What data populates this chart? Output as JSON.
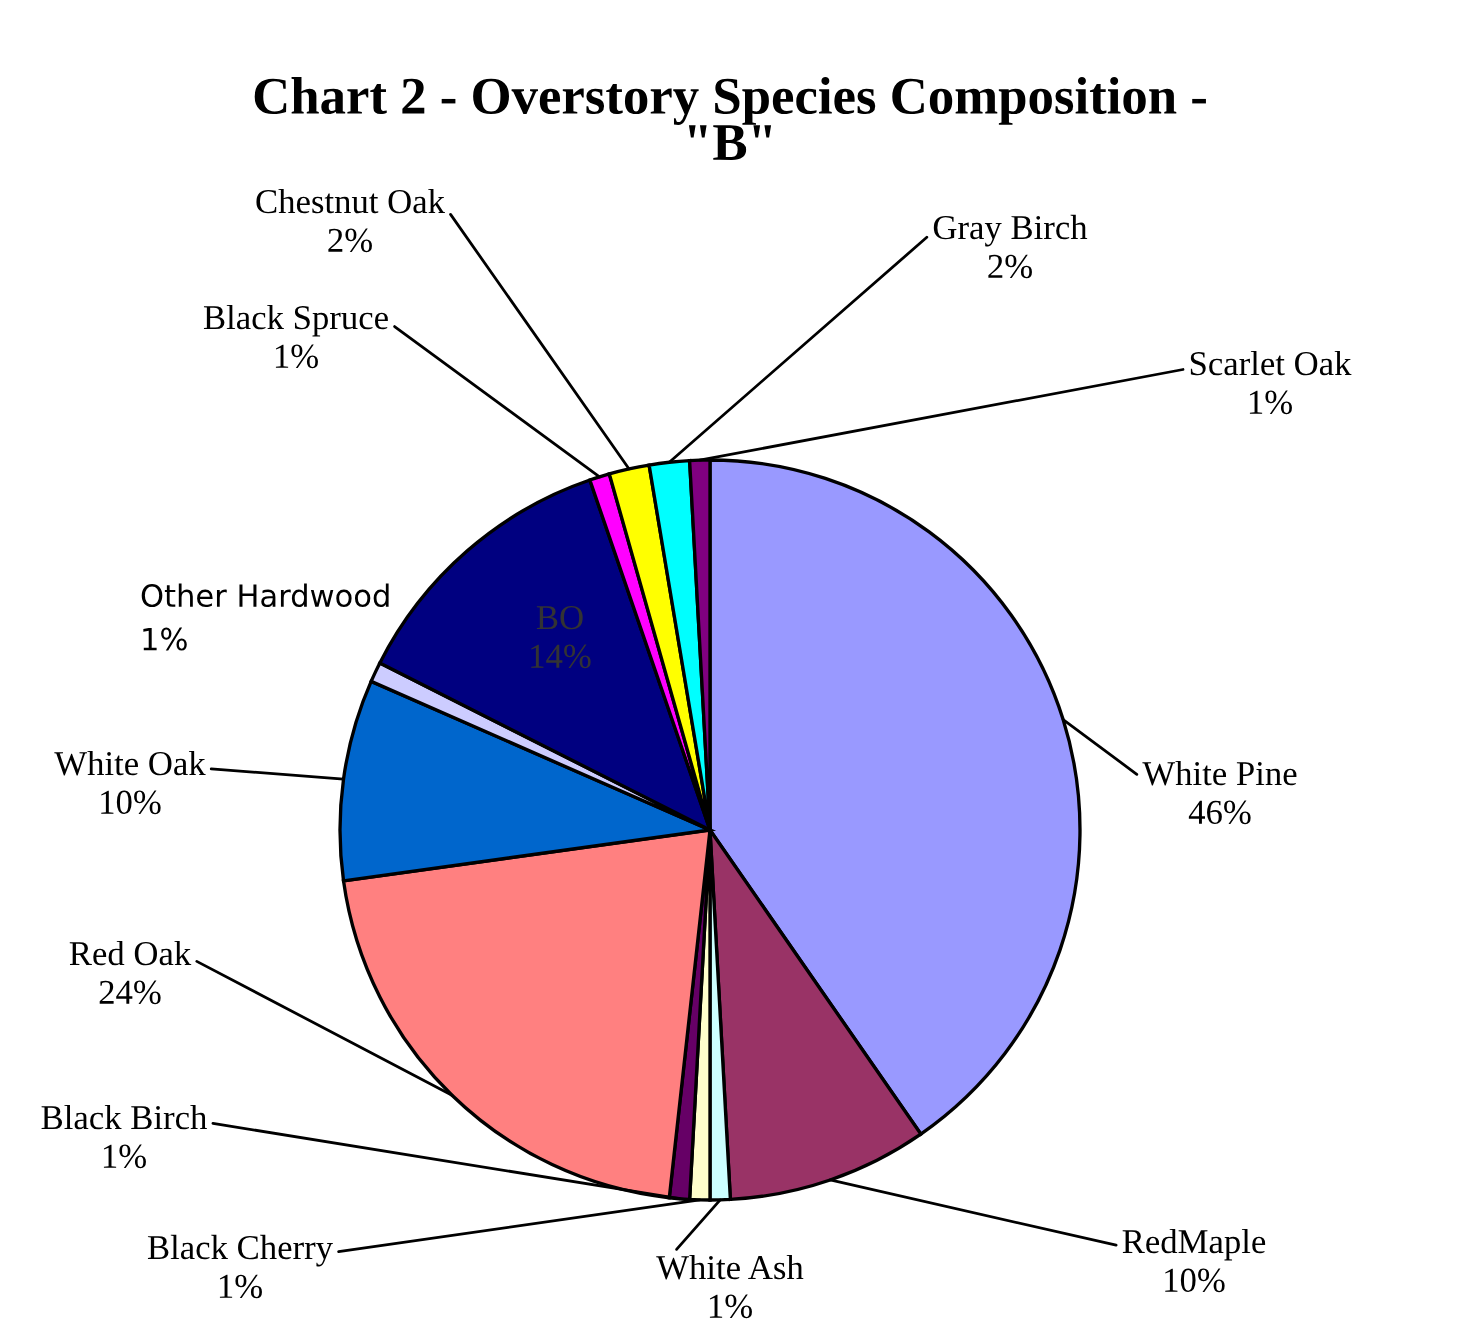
{
  "chart_data": {
    "type": "pie",
    "title": "Chart 2 - Overstory Species Composition -\n\"B\"",
    "categories": [
      "White Pine",
      "RedMaple",
      "White Ash",
      "Black Cherry",
      "Black Birch",
      "Red Oak",
      "White Oak",
      "Other Hardwood",
      "BO",
      "Black Spruce",
      "Chestnut Oak",
      "Gray Birch",
      "Scarlet Oak"
    ],
    "values": [
      46,
      10,
      1,
      1,
      1,
      24,
      10,
      1,
      14,
      1,
      2,
      2,
      1
    ],
    "value_labels": [
      "46%",
      "10%",
      "1%",
      "1%",
      "1%",
      "24%",
      "10%",
      "1%",
      "14%",
      "1%",
      "2%",
      "2%",
      "1%"
    ],
    "colors": [
      "#9999ff",
      "#993366",
      "#ccffff",
      "#ffffcc",
      "#660066",
      "#ff8080",
      "#0066cc",
      "#ccccff",
      "#000080",
      "#ff00ff",
      "#ffff00",
      "#00ffff",
      "#800080"
    ]
  }
}
